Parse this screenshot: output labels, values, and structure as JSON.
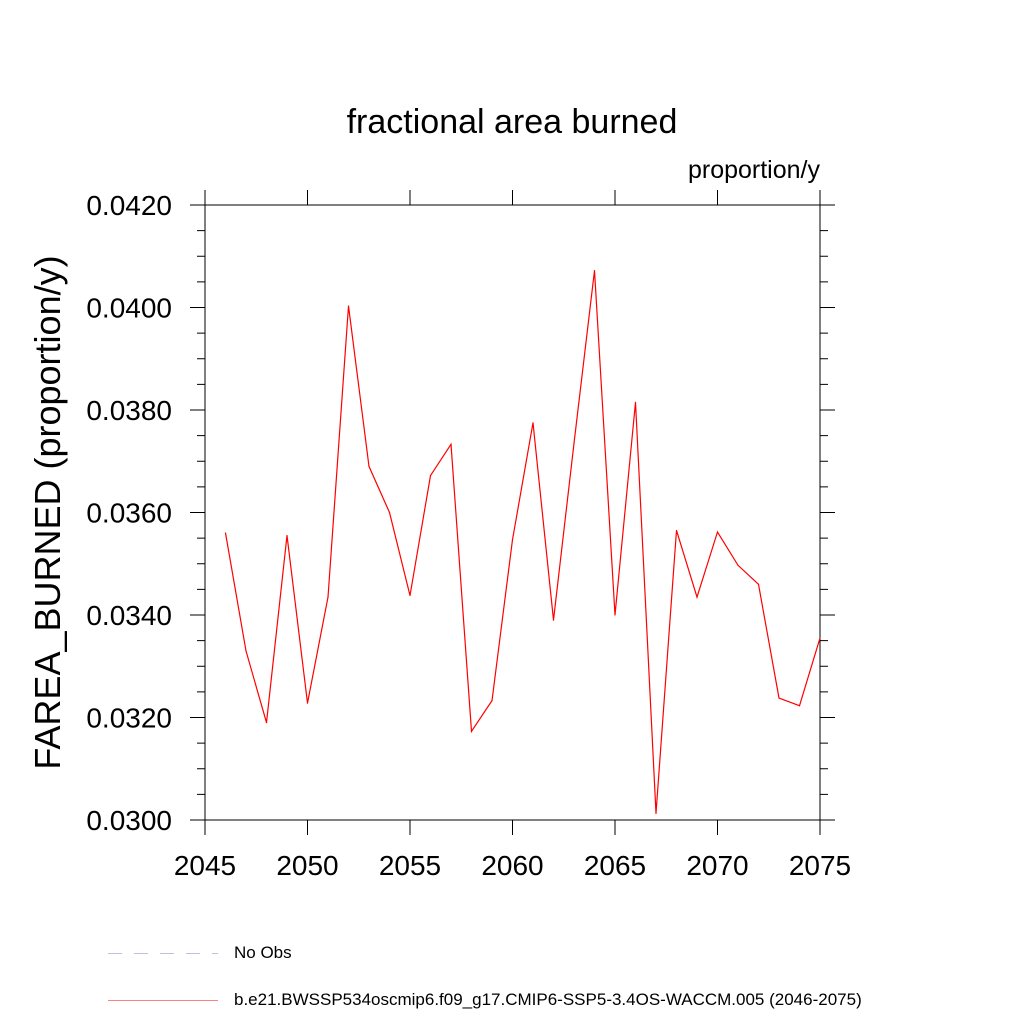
{
  "chart_data": {
    "type": "line",
    "title": "fractional area burned",
    "units_label": "proportion/y",
    "xlabel": "",
    "ylabel": "FAREA_BURNED  (proportion/y)",
    "xlim": [
      2045,
      2075
    ],
    "ylim": [
      0.03,
      0.042
    ],
    "x_ticks": [
      2045,
      2050,
      2055,
      2060,
      2065,
      2070,
      2075
    ],
    "y_ticks": [
      "0.0300",
      "0.0320",
      "0.0340",
      "0.0360",
      "0.0380",
      "0.0400",
      "0.0420"
    ],
    "grid": false,
    "legend_position": "bottom",
    "series": [
      {
        "name": "No Obs",
        "color": "#7f7fbf",
        "style": "dashed",
        "x": [],
        "y": []
      },
      {
        "name": "b.e21.BWSSP534oscmip6.f09_g17.CMIP6-SSP5-3.4OS-WACCM.005 (2046-2075)",
        "color": "#ff0000",
        "style": "solid",
        "x": [
          2046,
          2047,
          2048,
          2049,
          2050,
          2051,
          2052,
          2053,
          2054,
          2055,
          2056,
          2057,
          2058,
          2059,
          2060,
          2061,
          2062,
          2063,
          2064,
          2065,
          2066,
          2067,
          2068,
          2069,
          2070,
          2071,
          2072,
          2073,
          2074,
          2075
        ],
        "y": [
          0.0356,
          0.0333,
          0.0319,
          0.03555,
          0.03228,
          0.03435,
          0.04003,
          0.0369,
          0.036,
          0.03438,
          0.03672,
          0.03733,
          0.03173,
          0.03233,
          0.03547,
          0.03775,
          0.0339,
          0.03735,
          0.04072,
          0.034,
          0.03815,
          0.03013,
          0.03565,
          0.03435,
          0.03562,
          0.03497,
          0.0346,
          0.03238,
          0.03223,
          0.03355
        ]
      }
    ]
  }
}
